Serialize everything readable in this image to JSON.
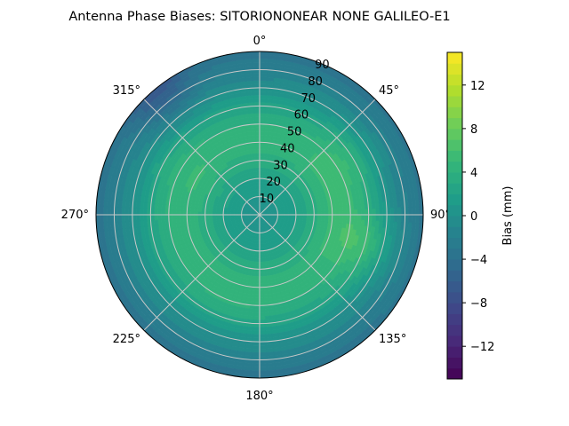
{
  "chart_data": {
    "type": "heatmap",
    "projection": "polar",
    "title": "Antenna Phase Biases: SITORIONONEAR   NONE GALILEO-E1",
    "theta_direction": "clockwise",
    "theta_zero": "north",
    "theta_ticks": [
      "0°",
      "45°",
      "90°",
      "135°",
      "180°",
      "225°",
      "270°",
      "315°"
    ],
    "theta_tick_values": [
      0,
      45,
      90,
      135,
      180,
      225,
      270,
      315
    ],
    "r_ticks": [
      "10",
      "20",
      "30",
      "40",
      "50",
      "60",
      "70",
      "80",
      "90"
    ],
    "r_tick_values": [
      10,
      20,
      30,
      40,
      50,
      60,
      70,
      80,
      90
    ],
    "rlim": [
      0,
      90
    ],
    "grid": true,
    "colormap": "viridis",
    "colorbar": {
      "label": "Bias (mm)",
      "range": [
        -15,
        15
      ],
      "ticks": [
        "−12",
        "−8",
        "−4",
        "0",
        "4",
        "8",
        "12"
      ],
      "tick_values": [
        -12,
        -8,
        -4,
        0,
        4,
        8,
        12
      ]
    },
    "bias_profile_by_zenith": {
      "zenith_deg": [
        0,
        10,
        20,
        30,
        40,
        50,
        60,
        70,
        80,
        90
      ],
      "bias_mm": [
        0.5,
        1.0,
        2.0,
        3.5,
        4.5,
        4.0,
        2.5,
        0.0,
        -2.0,
        -3.5
      ]
    },
    "features": [
      {
        "azimuth_deg": 105,
        "zenith_deg": 60,
        "bias_mm": 5.5
      },
      {
        "azimuth_deg": 60,
        "zenith_deg": 55,
        "bias_mm": 5.0
      },
      {
        "azimuth_deg": 300,
        "zenith_deg": 45,
        "bias_mm": 5.0
      },
      {
        "azimuth_deg": 200,
        "zenith_deg": 45,
        "bias_mm": 4.5
      },
      {
        "azimuth_deg": 320,
        "zenith_deg": 88,
        "bias_mm": -6.5
      }
    ]
  }
}
